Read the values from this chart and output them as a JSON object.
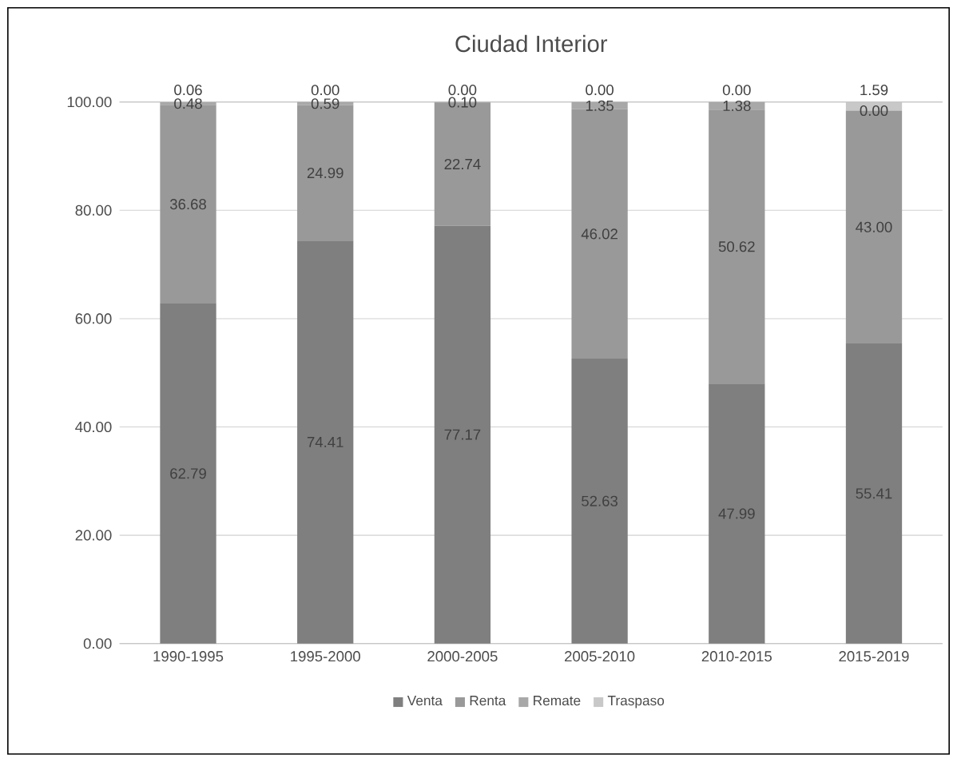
{
  "chart_data": {
    "type": "bar",
    "stacked": true,
    "title": "Ciudad Interior",
    "categories": [
      "1990-1995",
      "1995-2000",
      "2000-2005",
      "2005-2010",
      "2010-2015",
      "2015-2019"
    ],
    "series": [
      {
        "name": "Venta",
        "color": "#7f7f7f",
        "values": [
          62.79,
          74.41,
          77.17,
          52.63,
          47.99,
          55.41
        ],
        "value_labels": [
          "62.79",
          "74.41",
          "77.17",
          "52.63",
          "47.99",
          "55.41"
        ]
      },
      {
        "name": "Renta",
        "color": "#999999",
        "values": [
          36.68,
          24.99,
          22.74,
          46.02,
          50.62,
          43.0
        ],
        "value_labels": [
          "36.68",
          "24.99",
          "22.74",
          "46.02",
          "50.62",
          "43.00"
        ]
      },
      {
        "name": "Remate",
        "color": "#a8a8a8",
        "values": [
          0.48,
          0.59,
          0.1,
          1.35,
          1.38,
          0.0
        ],
        "value_labels": [
          "0.48",
          "0.59",
          "0.10",
          "1.35",
          "1.38",
          "0.00"
        ]
      },
      {
        "name": "Traspaso",
        "color": "#c8c8c8",
        "values": [
          0.06,
          0.0,
          0.0,
          0.0,
          0.0,
          1.59
        ],
        "value_labels": [
          "0.06",
          "0.00",
          "0.00",
          "0.00",
          "0.00",
          "1.59"
        ]
      }
    ],
    "ylim": [
      0,
      100
    ],
    "yticks": [
      {
        "value": 0,
        "label": "0.00"
      },
      {
        "value": 20,
        "label": "20.00"
      },
      {
        "value": 40,
        "label": "40.00"
      },
      {
        "value": 60,
        "label": "60.00"
      },
      {
        "value": 80,
        "label": "80.00"
      },
      {
        "value": 100,
        "label": "100.00"
      }
    ],
    "grid": "y",
    "legend": "bottom"
  }
}
